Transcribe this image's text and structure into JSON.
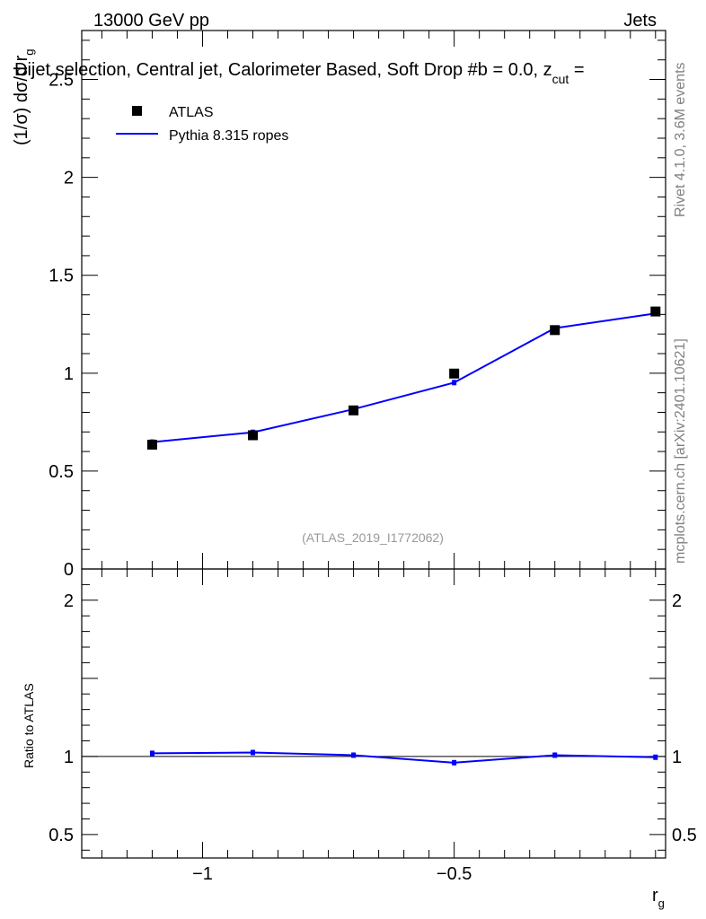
{
  "header": {
    "energy_label": "13000 GeV pp",
    "process_label": "Jets"
  },
  "title": "Dijet selection, Central jet, Calorimeter Based, Soft Drop #b = 0.0, z",
  "title_cut_sub": "cut",
  "title_tail": " =",
  "side_labels": {
    "rivet": "Rivet 4.1.0,  3.6M events",
    "mcplots": "mcplots.cern.ch [arXiv:2401.10621]"
  },
  "watermark": "(ATLAS_2019_I1772062)",
  "legend": {
    "data_label": "ATLAS",
    "mc_label": "Pythia 8.315 ropes"
  },
  "colors": {
    "data": "#000000",
    "mc": "#0000ff",
    "watermark": "#999999"
  },
  "chart_data": [
    {
      "type": "scatter",
      "name": "main",
      "ylabel": "(1/σ) dσ/d r",
      "ylabel_sub": "g",
      "xlim": [
        -1.24,
        -0.08
      ],
      "ylim": [
        0,
        2.75
      ],
      "yticks": [
        0.5,
        1,
        1.5,
        2,
        2.5
      ],
      "ytick_labels": [
        "0.5",
        "1",
        "1.5",
        "2",
        "2.5"
      ],
      "ytick_zero_label": "0",
      "series": [
        {
          "name": "ATLAS",
          "style": "markers",
          "x": [
            -1.1,
            -0.9,
            -0.7,
            -0.5,
            -0.3,
            -0.1
          ],
          "y": [
            0.635,
            0.683,
            0.81,
            0.998,
            1.22,
            1.315
          ]
        },
        {
          "name": "Pythia 8.315 ropes",
          "style": "line",
          "x": [
            -1.1,
            -0.9,
            -0.7,
            -0.5,
            -0.3,
            -0.1
          ],
          "y": [
            0.648,
            0.698,
            0.816,
            0.952,
            1.23,
            1.305
          ]
        }
      ]
    },
    {
      "type": "line",
      "name": "ratio",
      "ylabel": "Ratio to ATLAS",
      "xlabel": "r",
      "xlabel_sub": "g",
      "xlim": [
        -1.24,
        -0.08
      ],
      "ylim": [
        0.35,
        2.2
      ],
      "yticks": [
        0.5,
        1,
        2
      ],
      "ytick_labels": [
        "0.5",
        "1",
        "2"
      ],
      "xticks": [
        -1,
        -0.5
      ],
      "xtick_labels": [
        "−1",
        "−0.5"
      ],
      "series": [
        {
          "name": "Pythia 8.315 ropes / ATLAS",
          "x": [
            -1.1,
            -0.9,
            -0.7,
            -0.5,
            -0.3,
            -0.1
          ],
          "y": [
            1.02,
            1.025,
            1.008,
            0.96,
            1.008,
            0.995
          ]
        }
      ]
    }
  ]
}
